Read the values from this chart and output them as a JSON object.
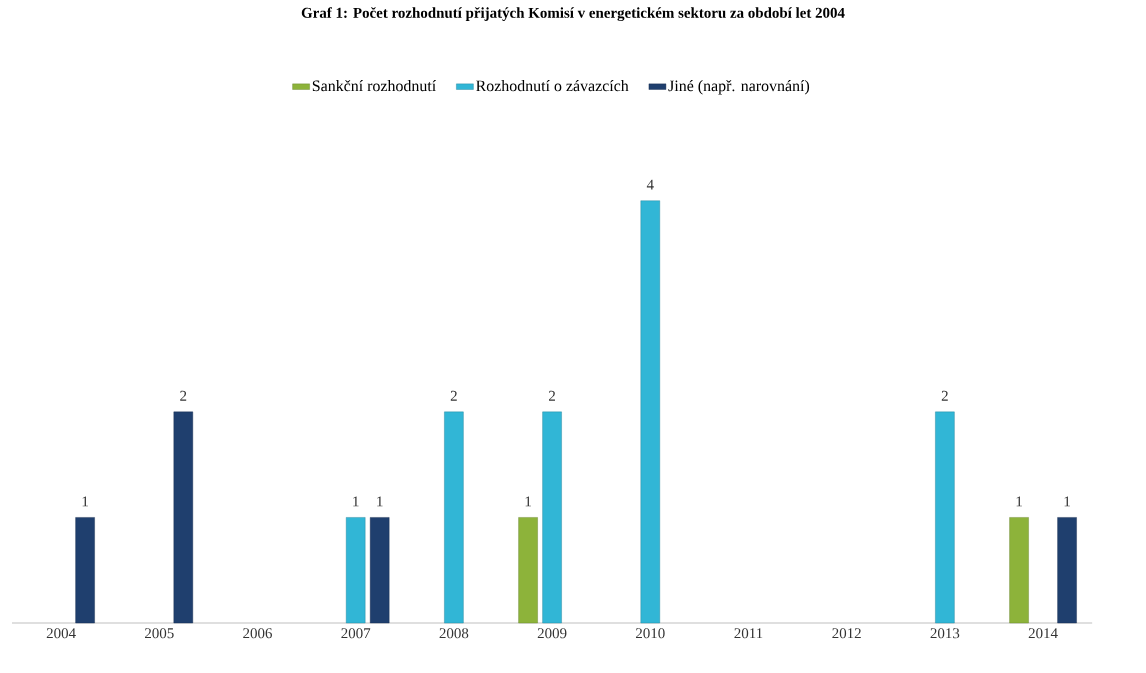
{
  "chart_data": {
    "type": "bar",
    "title": "Graf 1: Počet rozhodnutí přijatých Komisí v energetickém sektoru za období let 2004",
    "categories": [
      "2004",
      "2005",
      "2006",
      "2007",
      "2008",
      "2009",
      "2010",
      "2011",
      "2012",
      "2013",
      "2014"
    ],
    "series": [
      {
        "name": "Sankční rozhodnutí",
        "color": "#8db33a",
        "values": [
          null,
          null,
          null,
          null,
          null,
          1,
          null,
          null,
          null,
          null,
          1
        ]
      },
      {
        "name": "Rozhodnutí o závazcích",
        "color": "#31b6d6",
        "values": [
          null,
          null,
          null,
          1,
          2,
          2,
          4,
          null,
          null,
          2,
          null
        ]
      },
      {
        "name": "Jiné (např. narovnání)",
        "color": "#1f3f6e",
        "values": [
          1,
          2,
          null,
          1,
          null,
          null,
          null,
          null,
          null,
          null,
          1
        ]
      }
    ],
    "data_labels": true,
    "legend": "top"
  }
}
